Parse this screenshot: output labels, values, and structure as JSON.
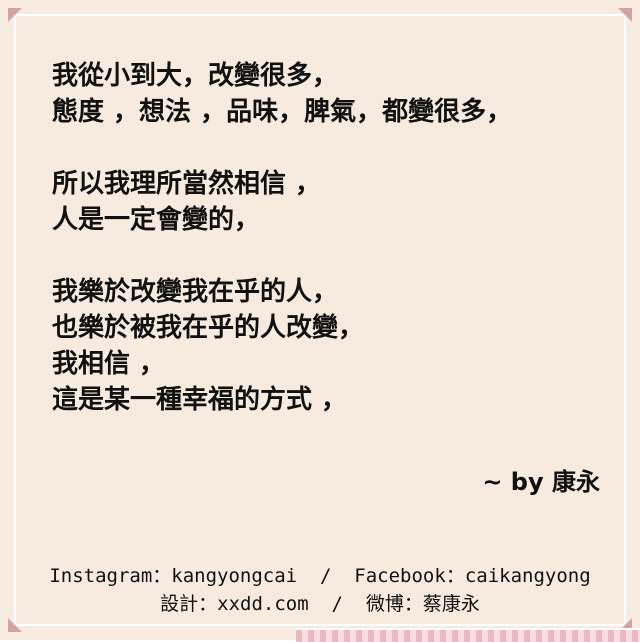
{
  "poem": {
    "stanzas": [
      [
        "我從小到大，改變很多，",
        "態度 ，想法 ，品味，脾氣，都變很多，"
      ],
      [
        "所以我理所當然相信 ，",
        "人是一定會變的，"
      ],
      [
        "我樂於改變我在乎的人，",
        "也樂於被我在乎的人改變，",
        "我相信 ，",
        "這是某一種幸福的方式 ，"
      ]
    ]
  },
  "signature": "~ by 康永",
  "footer": {
    "line1": "Instagram：kangyongcai  /  Facebook：caikangyong",
    "line2": "設計：xxdd.com  /  微博：蔡康永"
  },
  "colors": {
    "background": "#f6ebde",
    "corner_accent": "#d4a4a4",
    "ribbon": "#e8b9c4"
  }
}
